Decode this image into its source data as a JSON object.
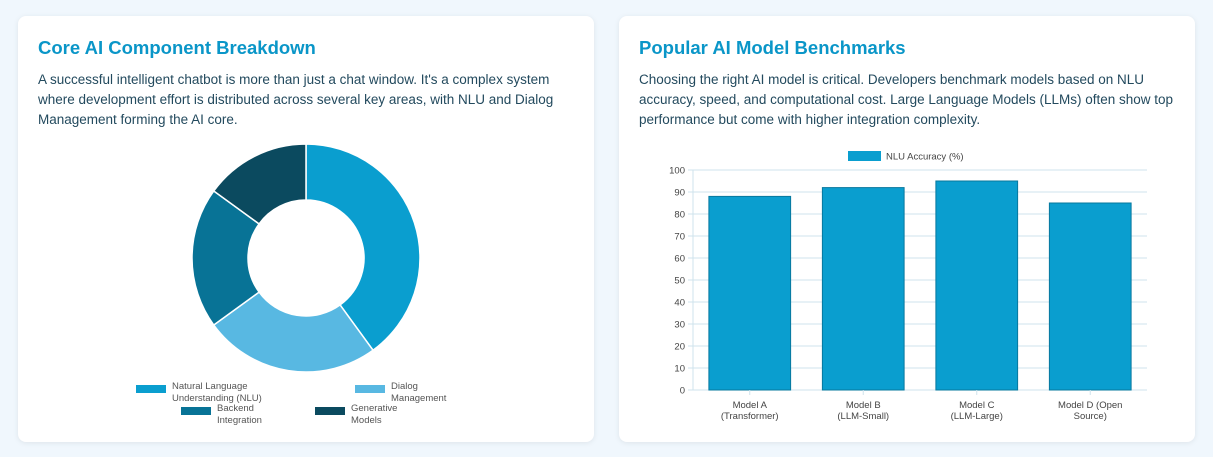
{
  "left_card": {
    "title": "Core AI Component Breakdown",
    "description": "A successful intelligent chatbot is more than just a chat window. It's a complex system where development effort is distributed across several key areas, with NLU and Dialog Management forming the AI core."
  },
  "right_card": {
    "title": "Popular AI Model Benchmarks",
    "description": "Choosing the right AI model is critical. Developers benchmark models based on NLU accuracy, speed, and computational cost. Large Language Models (LLMs) often show top performance but come with higher integration complexity."
  },
  "colors": {
    "title": "#0a96c8",
    "nlu": "#0a9ecf",
    "dialog": "#58b8e2",
    "backend": "#087396",
    "generative": "#0b4a5f",
    "bar": "#0a9ecf"
  },
  "chart_data": [
    {
      "type": "pie",
      "variant": "doughnut",
      "labels": [
        "Natural Language Understanding (NLU)",
        "Dialog Management",
        "Backend Integration",
        "Generative Models"
      ],
      "legend_lines": [
        [
          "Natural Language",
          "Understanding (NLU)"
        ],
        [
          "Dialog",
          "Management"
        ],
        [
          "Backend",
          "Integration"
        ],
        [
          "Generative",
          "Models"
        ]
      ],
      "values": [
        40,
        25,
        20,
        15
      ],
      "legend": "bottom"
    },
    {
      "type": "bar",
      "categories": [
        "Model A (Transformer)",
        "Model B (LLM-Small)",
        "Model C (LLM-Large)",
        "Model D (Open Source)"
      ],
      "category_lines": [
        [
          "Model A",
          "(Transformer)"
        ],
        [
          "Model B",
          "(LLM-Small)"
        ],
        [
          "Model C",
          "(LLM-Large)"
        ],
        [
          "Model D (Open",
          "Source)"
        ]
      ],
      "series": [
        {
          "name": "NLU Accuracy (%)",
          "values": [
            88,
            92,
            95,
            85
          ]
        }
      ],
      "ylim": [
        0,
        100
      ],
      "yticks": [
        0,
        10,
        20,
        30,
        40,
        50,
        60,
        70,
        80,
        90,
        100
      ],
      "grid": true,
      "legend": "top"
    }
  ]
}
